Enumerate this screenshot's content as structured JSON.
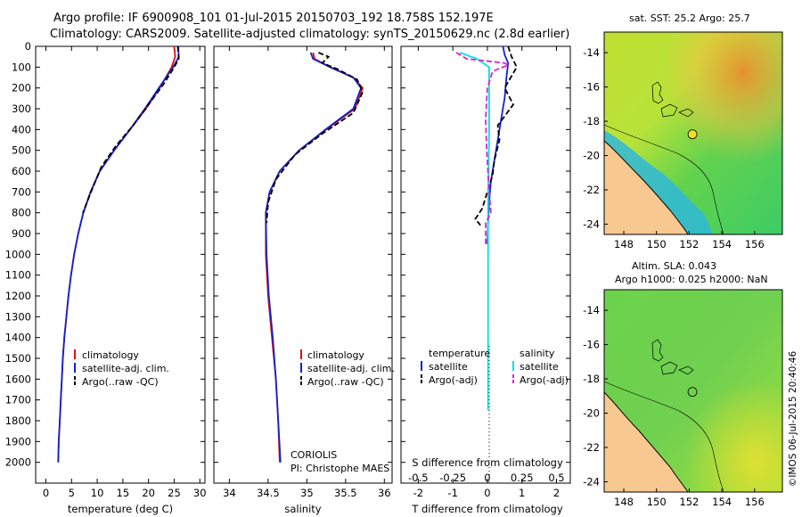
{
  "figure": {
    "title_line1": "Argo profile: IF 6900908_101 01-Jul-2015 20150703_192 18.758S 152.197E",
    "title_line2": "Climatology: CARS2009. Satellite-adjusted climatology: synTS_20150629.nc (2.8d earlier)",
    "credit": "©IMOS 06-Jul-2015 20:40:46",
    "institution": "CORIOLIS",
    "pi": "PI: Christophe MAES"
  },
  "maps": {
    "sst": {
      "label": "sat. SST: 25.2  Argo: 25.7",
      "lon_ticks": [
        "148",
        "150",
        "152",
        "154",
        "156"
      ],
      "lat_ticks": [
        "-14",
        "-16",
        "-18",
        "-20",
        "-22",
        "-24"
      ],
      "float_lon": 152.2,
      "float_lat": -18.76
    },
    "sla": {
      "label_line1": "Altim. SLA: 0.043",
      "label_line2": "Argo h1000: 0.025  h2000: NaN",
      "lon_ticks": [
        "148",
        "150",
        "152",
        "154",
        "156"
      ],
      "lat_ticks": [
        "-14",
        "-16",
        "-18",
        "-20",
        "-22",
        "-24"
      ],
      "float_lon": 152.2,
      "float_lat": -18.76
    },
    "colors": {
      "land": "#f7c890",
      "coast": "#000000"
    }
  },
  "chart_data": [
    {
      "type": "line",
      "xlabel": "temperature (deg C)",
      "ylabel": "",
      "xlim": [
        -2,
        31
      ],
      "ylim": [
        2100,
        0
      ],
      "x_ticks": [
        "0",
        "5",
        "10",
        "15",
        "20",
        "25",
        "30"
      ],
      "y_ticks": [
        "0",
        "100",
        "200",
        "300",
        "400",
        "500",
        "600",
        "700",
        "800",
        "900",
        "1000",
        "1100",
        "1200",
        "1300",
        "1400",
        "1500",
        "1600",
        "1700",
        "1800",
        "1900",
        "2000"
      ],
      "legend": [
        "climatology",
        "satellite-adj. clim.",
        "Argo(..raw -QC)"
      ],
      "series": [
        {
          "name": "climatology",
          "color": "#dd1111",
          "dash": "",
          "points": [
            [
              25,
              0
            ],
            [
              25.2,
              50
            ],
            [
              24.5,
              100
            ],
            [
              22.2,
              200
            ],
            [
              19.5,
              300
            ],
            [
              16.4,
              400
            ],
            [
              13.3,
              500
            ],
            [
              10.5,
              600
            ],
            [
              8.7,
              700
            ],
            [
              7.3,
              800
            ],
            [
              6.3,
              900
            ],
            [
              5.5,
              1000
            ],
            [
              4.9,
              1100
            ],
            [
              4.4,
              1200
            ],
            [
              4.0,
              1300
            ],
            [
              3.6,
              1400
            ],
            [
              3.3,
              1500
            ],
            [
              3.1,
              1600
            ],
            [
              2.9,
              1700
            ],
            [
              2.7,
              1800
            ],
            [
              2.5,
              1900
            ],
            [
              2.4,
              2000
            ]
          ]
        },
        {
          "name": "satellite-adj. clim.",
          "color": "#1122cc",
          "dash": "",
          "points": [
            [
              25.8,
              0
            ],
            [
              25.9,
              50
            ],
            [
              24.8,
              100
            ],
            [
              22.0,
              200
            ],
            [
              19.3,
              300
            ],
            [
              16.4,
              400
            ],
            [
              13.3,
              500
            ],
            [
              10.5,
              600
            ],
            [
              8.7,
              700
            ],
            [
              7.3,
              800
            ],
            [
              6.3,
              900
            ],
            [
              5.5,
              1000
            ],
            [
              4.9,
              1100
            ],
            [
              4.4,
              1200
            ],
            [
              4.0,
              1300
            ],
            [
              3.6,
              1400
            ],
            [
              3.3,
              1500
            ],
            [
              3.1,
              1600
            ],
            [
              2.9,
              1700
            ],
            [
              2.7,
              1800
            ],
            [
              2.5,
              1900
            ],
            [
              2.4,
              2000
            ]
          ]
        },
        {
          "name": "Argo(..raw -QC)",
          "color": "#000000",
          "dash": "6,3",
          "points": [
            [
              25.7,
              0
            ],
            [
              25.9,
              60
            ],
            [
              25.0,
              100
            ],
            [
              23.0,
              180
            ],
            [
              20.0,
              280
            ],
            [
              17.0,
              380
            ],
            [
              13.6,
              480
            ],
            [
              10.8,
              580
            ],
            [
              8.8,
              700
            ],
            [
              7.2,
              800
            ]
          ]
        }
      ]
    },
    {
      "type": "line",
      "xlabel": "salinity",
      "ylabel": "",
      "xlim": [
        33.8,
        36.1
      ],
      "ylim": [
        2100,
        0
      ],
      "x_ticks": [
        "34",
        "34.5",
        "35",
        "35.5",
        "36"
      ],
      "legend": [
        "climatology",
        "satellite-adj. clim.",
        "Argo(..raw -QC)"
      ],
      "series": [
        {
          "name": "climatology",
          "color": "#dd1111",
          "dash": "",
          "points": [
            [
              35.08,
              30
            ],
            [
              35.1,
              60
            ],
            [
              35.3,
              100
            ],
            [
              35.6,
              150
            ],
            [
              35.72,
              200
            ],
            [
              35.62,
              300
            ],
            [
              35.25,
              400
            ],
            [
              34.9,
              500
            ],
            [
              34.65,
              600
            ],
            [
              34.52,
              700
            ],
            [
              34.47,
              800
            ],
            [
              34.47,
              1000
            ],
            [
              34.5,
              1200
            ],
            [
              34.55,
              1400
            ],
            [
              34.6,
              1600
            ],
            [
              34.63,
              1800
            ],
            [
              34.65,
              2000
            ]
          ]
        },
        {
          "name": "satellite-adj. clim.",
          "color": "#1122cc",
          "dash": "",
          "points": [
            [
              35.05,
              30
            ],
            [
              35.08,
              60
            ],
            [
              35.3,
              100
            ],
            [
              35.6,
              150
            ],
            [
              35.7,
              200
            ],
            [
              35.6,
              300
            ],
            [
              35.24,
              400
            ],
            [
              34.9,
              500
            ],
            [
              34.65,
              600
            ],
            [
              34.52,
              700
            ],
            [
              34.47,
              800
            ],
            [
              34.48,
              1000
            ],
            [
              34.51,
              1200
            ],
            [
              34.56,
              1400
            ],
            [
              34.6,
              1600
            ],
            [
              34.63,
              1800
            ],
            [
              34.66,
              2000
            ]
          ]
        },
        {
          "name": "Argo(..raw -QC)",
          "color": "#000000",
          "dash": "6,3",
          "points": [
            [
              35.15,
              30
            ],
            [
              35.28,
              50
            ],
            [
              35.2,
              80
            ],
            [
              35.4,
              110
            ],
            [
              35.65,
              160
            ],
            [
              35.72,
              220
            ],
            [
              35.6,
              320
            ],
            [
              35.2,
              420
            ],
            [
              34.85,
              520
            ],
            [
              34.6,
              640
            ],
            [
              34.5,
              750
            ],
            [
              34.48,
              850
            ]
          ]
        }
      ]
    },
    {
      "type": "line",
      "xlabel": "T difference from climatology",
      "xlabel_top": "S difference from climatology",
      "xlim": [
        -2.5,
        2.4
      ],
      "ylim": [
        2100,
        0
      ],
      "x_ticks": [
        "-2",
        "-1",
        "0",
        "1",
        "2"
      ],
      "x_ticks_top": [
        "-0.5",
        "-0.25",
        "0",
        "0.25",
        "0.5"
      ],
      "legend_temperature_header": "temperature",
      "legend_salinity_header": "salinity",
      "legend": [
        "satellite",
        "Argo(-adj)",
        "satellite",
        "Argo(-adj)"
      ],
      "series": [
        {
          "name": "satellite",
          "color": "#1122cc",
          "dash": "",
          "points": [
            [
              0.45,
              0
            ],
            [
              0.5,
              40
            ],
            [
              0.6,
              80
            ],
            [
              0.55,
              150
            ],
            [
              0.5,
              250
            ],
            [
              0.4,
              350
            ],
            [
              0.3,
              450
            ],
            [
              0.2,
              550
            ],
            [
              0.1,
              650
            ],
            [
              0.05,
              750
            ],
            [
              0.02,
              850
            ],
            [
              0,
              950
            ]
          ]
        },
        {
          "name": "Argo(-adj)",
          "color": "#000000",
          "dash": "6,3",
          "points": [
            [
              0.6,
              0
            ],
            [
              0.7,
              50
            ],
            [
              0.85,
              100
            ],
            [
              0.5,
              200
            ],
            [
              0.75,
              280
            ],
            [
              0.3,
              380
            ],
            [
              0.35,
              450
            ],
            [
              0.2,
              550
            ],
            [
              0.15,
              620
            ],
            [
              0,
              700
            ],
            [
              -0.15,
              780
            ],
            [
              -0.35,
              830
            ],
            [
              -0.2,
              860
            ]
          ]
        },
        {
          "name": "satellite",
          "color": "#00e0ee",
          "dash": "",
          "points": [
            [
              -0.8,
              30
            ],
            [
              -0.3,
              60
            ],
            [
              0.05,
              100
            ],
            [
              0.05,
              200
            ],
            [
              0.05,
              400
            ],
            [
              0.02,
              800
            ],
            [
              0.02,
              1200
            ],
            [
              0.02,
              1600
            ],
            [
              0.02,
              1700
            ],
            [
              0.02,
              1750
            ]
          ]
        },
        {
          "name": "Argo(-adj)",
          "color": "#dd22cc",
          "dash": "6,3",
          "points": [
            [
              -0.9,
              30
            ],
            [
              -0.6,
              60
            ],
            [
              0.5,
              80
            ],
            [
              0.6,
              90
            ],
            [
              0.15,
              120
            ],
            [
              0,
              200
            ],
            [
              -0.05,
              350
            ],
            [
              -0.02,
              500
            ],
            [
              0.05,
              700
            ],
            [
              0.1,
              800
            ],
            [
              -0.05,
              850
            ],
            [
              -0.05,
              950
            ]
          ]
        }
      ]
    }
  ]
}
